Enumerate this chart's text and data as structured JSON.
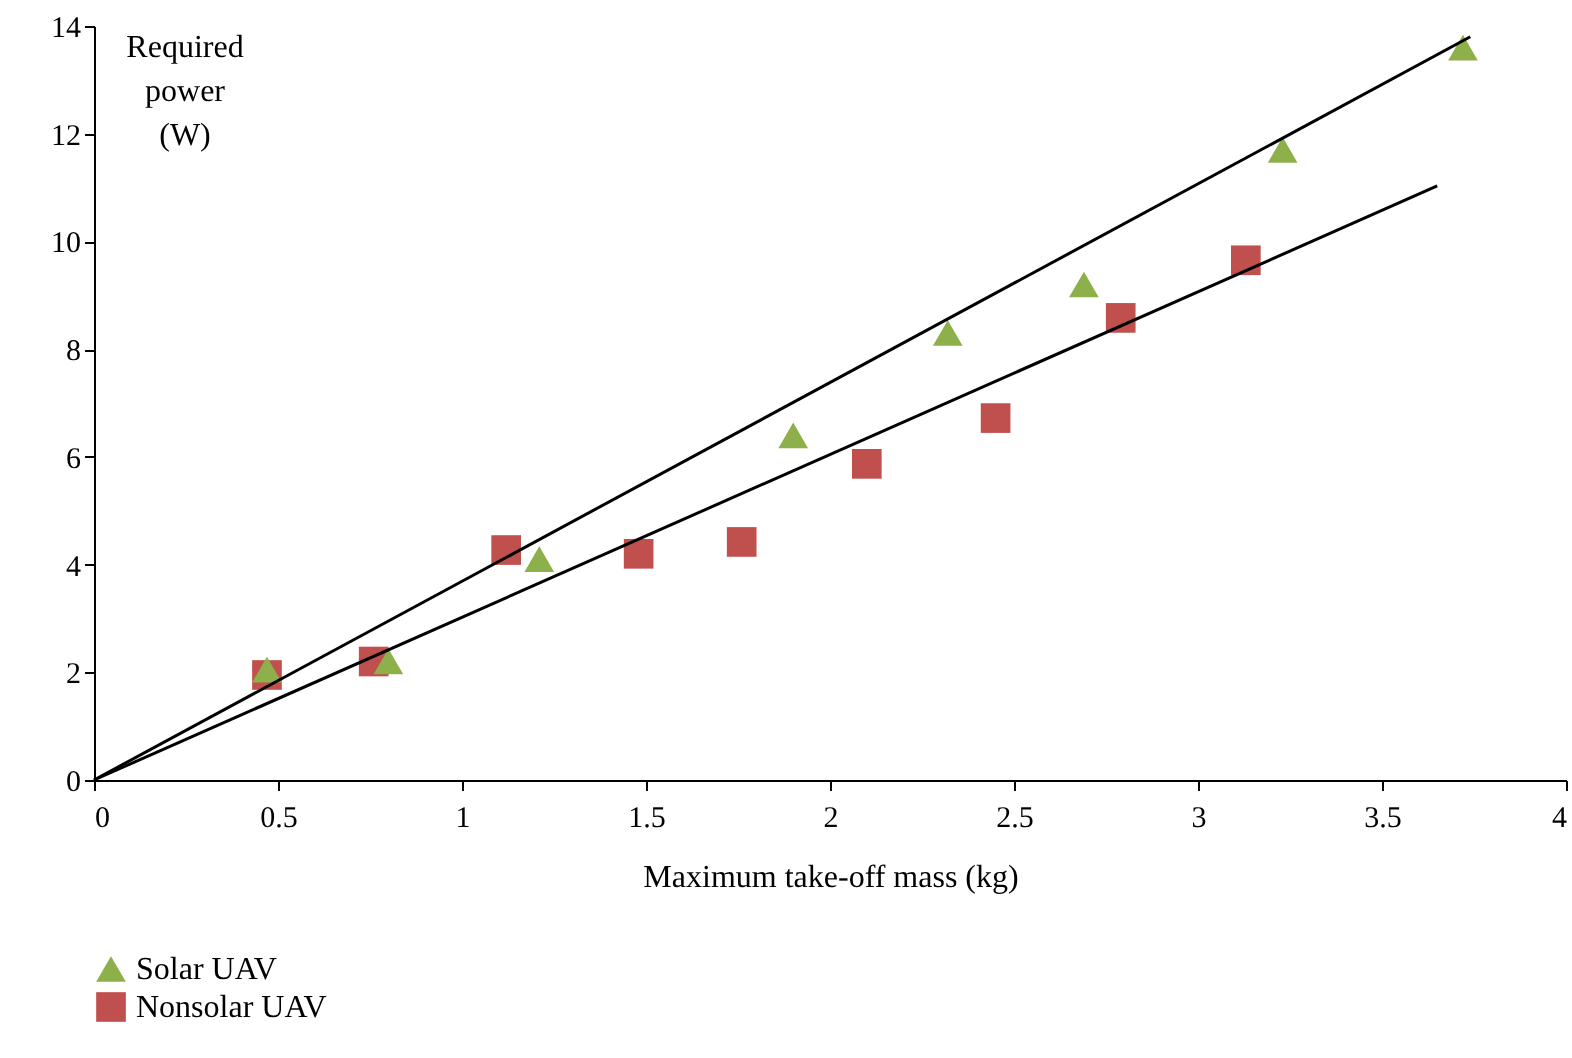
{
  "chart_data": {
    "type": "scatter",
    "xlabel": "Maximum take-off mass (kg)",
    "ylabel": "Required power (W)",
    "xlim": [
      0,
      4
    ],
    "ylim": [
      0,
      14
    ],
    "xticks": [
      {
        "value": 0,
        "label": "0"
      },
      0.5,
      {
        "value": 1,
        "label": "1"
      },
      1.5,
      {
        "value": 2,
        "label": "2"
      },
      2.5,
      {
        "value": 3,
        "label": "3"
      },
      3.5,
      {
        "value": 4,
        "label": "4"
      }
    ],
    "yticks": [
      0,
      2,
      4,
      6,
      8,
      10,
      12,
      14
    ],
    "grid": false,
    "legend": "bottom left",
    "series": [
      {
        "name": "Solar UAV",
        "color": "#8db04a",
        "marker": "triangle",
        "x": [
          0.47,
          0.8,
          1.21,
          1.9,
          2.32,
          2.69,
          3.23,
          3.72
        ],
        "values": [
          2.05,
          2.2,
          4.1,
          6.4,
          8.3,
          9.2,
          11.7,
          13.6
        ]
      },
      {
        "name": "Nonsolar UAV",
        "color": "#c0504d",
        "marker": "square",
        "x": [
          0.47,
          0.76,
          1.12,
          1.48,
          1.76,
          2.1,
          2.45,
          2.79,
          3.13
        ],
        "values": [
          1.95,
          2.2,
          4.27,
          4.2,
          4.42,
          5.87,
          6.72,
          8.58,
          9.65
        ]
      },
      {
        "type": "line",
        "color": "#000000",
        "marker": "none",
        "x": [
          0,
          3.74
        ],
        "values": [
          0,
          13.8
        ]
      },
      {
        "type": "line",
        "color": "#000000",
        "marker": "none",
        "x": [
          0,
          3.65
        ],
        "values": [
          0,
          11.03
        ]
      }
    ]
  }
}
